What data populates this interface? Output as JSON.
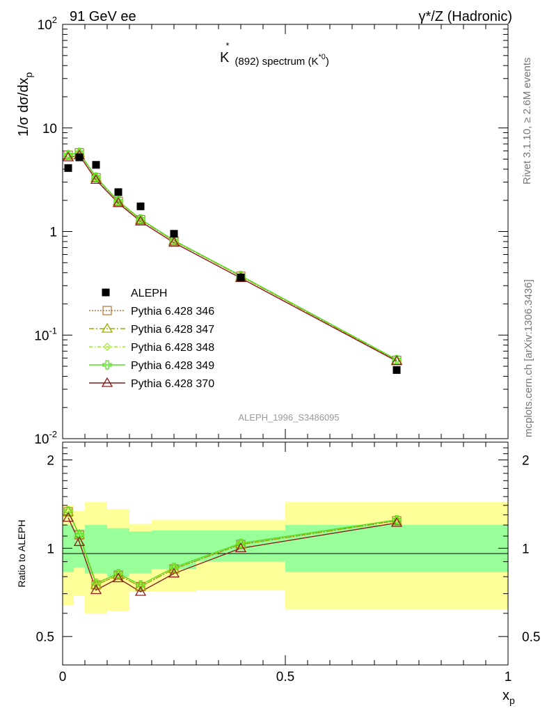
{
  "header": {
    "left": "91 GeV ee",
    "right": "γ*/Z (Hadronic)"
  },
  "plot_title": {
    "main": "K",
    "sup": "*",
    "sub": "(892) spectrum (K",
    "sub_sup": "*0",
    "end": ")"
  },
  "side_labels": {
    "rivet": "Rivet 3.1.10, ≥ 2.6M events",
    "mcplots": "mcplots.cern.ch [arXiv:1306.3436]"
  },
  "analysis_id": "ALEPH_1996_S3486095",
  "colors": {
    "band_inner": "#99ff99",
    "band_outer": "#ffff99",
    "data": "#000000"
  },
  "chart_data": [
    {
      "type": "line",
      "ylabel": "1/σ dσ/dx_p",
      "ylabel_parts": [
        "1/σ dσ/dx",
        "p"
      ],
      "yscale": "log",
      "ylim": [
        0.01,
        100
      ],
      "xlim": [
        0,
        1
      ],
      "y_tick_labels": [
        "10^-2",
        "10^-1",
        "1",
        "10",
        "10^2"
      ],
      "x": [
        0.0125,
        0.0375,
        0.075,
        0.125,
        0.175,
        0.25,
        0.4,
        0.75
      ],
      "data": {
        "name": "ALEPH",
        "values": [
          4.1,
          5.2,
          4.4,
          2.4,
          1.75,
          0.95,
          0.36,
          0.046
        ]
      },
      "series": [
        {
          "name": "Pythia 6.428 346",
          "color": "#b87333",
          "dash": "2,2",
          "marker": "square",
          "values": [
            5.45,
            5.75,
            3.3,
            1.95,
            1.3,
            0.81,
            0.37,
            0.057
          ]
        },
        {
          "name": "Pythia 6.428 347",
          "color": "#99aa00",
          "dash": "7,3,2,3",
          "marker": "triangle",
          "values": [
            5.45,
            5.75,
            3.3,
            1.95,
            1.3,
            0.81,
            0.37,
            0.057
          ]
        },
        {
          "name": "Pythia 6.428 348",
          "color": "#99ee22",
          "dash": "5,3,1,3",
          "marker": "diamond",
          "values": [
            5.5,
            5.8,
            3.35,
            1.97,
            1.32,
            0.82,
            0.375,
            0.058
          ]
        },
        {
          "name": "Pythia 6.428 349",
          "color": "#55dd22",
          "dash": "",
          "marker": "cross",
          "values": [
            5.5,
            5.8,
            3.35,
            1.97,
            1.32,
            0.82,
            0.375,
            0.058
          ]
        },
        {
          "name": "Pythia 6.428 370",
          "color": "#8b1a1a",
          "dash": "",
          "marker": "triangle-open",
          "values": [
            5.2,
            5.45,
            3.15,
            1.88,
            1.25,
            0.78,
            0.355,
            0.056
          ]
        }
      ],
      "legend_placement": "left-middle"
    },
    {
      "type": "line",
      "ylabel": "Ratio to ALEPH",
      "xlabel": "x_p",
      "xlabel_parts": [
        "x",
        "p"
      ],
      "ylim": [
        0.4,
        2.3
      ],
      "xlim": [
        0,
        1
      ],
      "y_tick_labels": [
        "0.5",
        "1",
        "2"
      ],
      "x_tick_labels": [
        "0",
        "0.5",
        "1"
      ],
      "bins": [
        [
          0,
          0.025
        ],
        [
          0.025,
          0.05
        ],
        [
          0.05,
          0.1
        ],
        [
          0.1,
          0.15
        ],
        [
          0.15,
          0.2
        ],
        [
          0.2,
          0.3
        ],
        [
          0.3,
          0.5
        ],
        [
          0.5,
          1.0
        ]
      ],
      "band_inner": [
        [
          0.83,
          1.2
        ],
        [
          0.86,
          1.16
        ],
        [
          0.82,
          1.2
        ],
        [
          0.8,
          1.17
        ],
        [
          0.82,
          1.14
        ],
        [
          0.85,
          1.15
        ],
        [
          0.9,
          1.15
        ],
        [
          0.83,
          1.2
        ]
      ],
      "band_outer": [
        [
          0.64,
          1.4
        ],
        [
          0.69,
          1.34
        ],
        [
          0.6,
          1.44
        ],
        [
          0.61,
          1.36
        ],
        [
          0.71,
          1.21
        ],
        [
          0.71,
          1.25
        ],
        [
          0.72,
          1.25
        ],
        [
          0.62,
          1.44
        ]
      ],
      "series": [
        {
          "name": "Pythia 6.428 346",
          "values": [
            1.33,
            1.11,
            0.75,
            0.81,
            0.74,
            0.85,
            1.03,
            1.24
          ]
        },
        {
          "name": "Pythia 6.428 347",
          "values": [
            1.33,
            1.11,
            0.75,
            0.81,
            0.74,
            0.85,
            1.03,
            1.24
          ]
        },
        {
          "name": "Pythia 6.428 348",
          "values": [
            1.34,
            1.11,
            0.76,
            0.82,
            0.75,
            0.86,
            1.04,
            1.25
          ]
        },
        {
          "name": "Pythia 6.428 349",
          "values": [
            1.34,
            1.11,
            0.76,
            0.82,
            0.75,
            0.86,
            1.04,
            1.25
          ]
        },
        {
          "name": "Pythia 6.428 370",
          "values": [
            1.27,
            1.05,
            0.72,
            0.79,
            0.71,
            0.82,
            1.0,
            1.22
          ]
        }
      ]
    }
  ]
}
